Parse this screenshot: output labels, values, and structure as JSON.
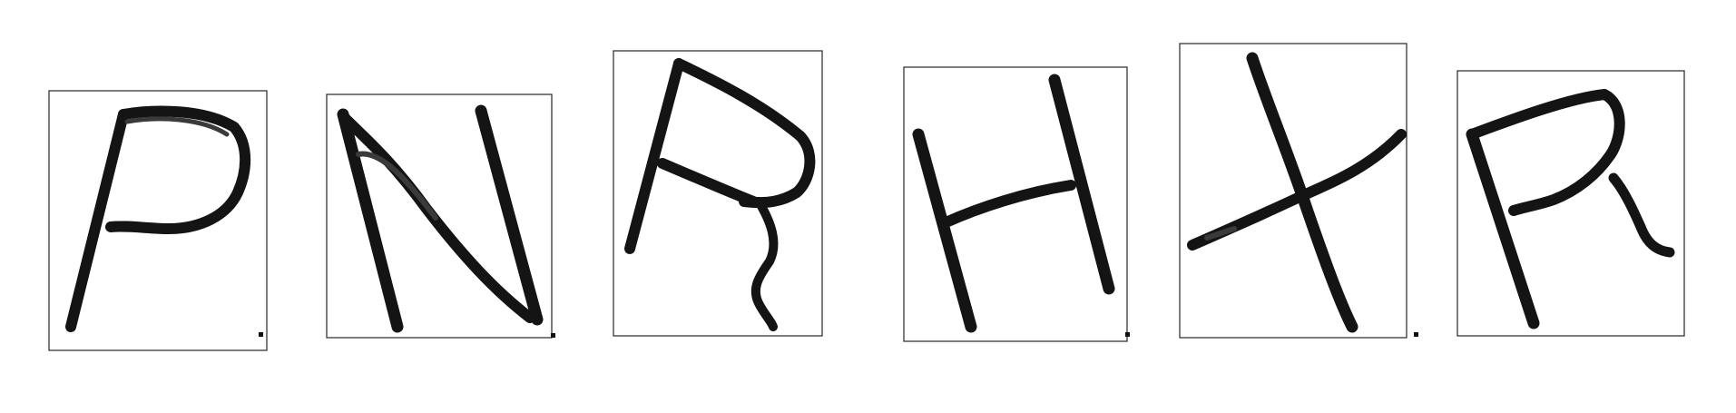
{
  "glyphs": [
    {
      "id": "glyph-1",
      "letter": "P"
    },
    {
      "id": "glyph-2",
      "letter": "N"
    },
    {
      "id": "glyph-3",
      "letter": "R"
    },
    {
      "id": "glyph-4",
      "letter": "H"
    },
    {
      "id": "glyph-5",
      "letter": "X"
    },
    {
      "id": "glyph-6",
      "letter": "R"
    }
  ],
  "colors": {
    "ink": "#141414",
    "box": "#262626",
    "background": "#ffffff"
  }
}
